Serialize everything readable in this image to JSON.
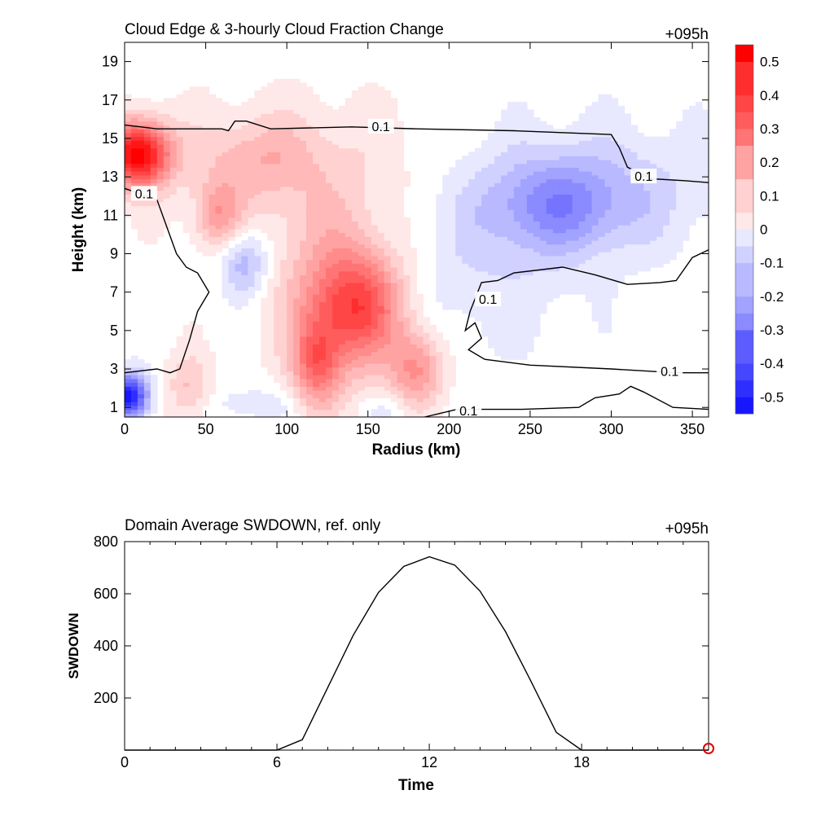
{
  "chart_data": [
    {
      "type": "heatmap",
      "title": "Cloud Edge & 3-hourly Cloud Fraction Change",
      "time_label": "+095h",
      "xlabel": "Radius (km)",
      "ylabel": "Height (km)",
      "xlim": [
        0,
        360
      ],
      "ylim": [
        0.5,
        20
      ],
      "xticks": [
        0,
        50,
        100,
        150,
        200,
        250,
        300,
        350
      ],
      "yticks": [
        1,
        3,
        5,
        7,
        9,
        11,
        13,
        15,
        17,
        19
      ],
      "colorbar": {
        "range": [
          -0.55,
          0.55
        ],
        "step": 0.05,
        "tick_values": [
          0.5,
          0.4,
          0.3,
          0.2,
          0.1,
          0,
          -0.1,
          -0.2,
          -0.3,
          -0.4,
          -0.5
        ],
        "tick_labels": [
          "0.5",
          "0.4",
          "0.3",
          "0.2",
          "0.1",
          "0",
          "-0.1",
          "-0.2",
          "-0.3",
          "-0.4",
          "-0.5"
        ],
        "positive_color": "#ff0000",
        "negative_color": "#0000ff"
      },
      "features": [
        {
          "x": 8,
          "y": 14.2,
          "value": 0.55,
          "sx": 14,
          "sy": 1.2
        },
        {
          "x": 145,
          "y": 6.3,
          "value": 0.3,
          "sx": 20,
          "sy": 2.0
        },
        {
          "x": 128,
          "y": 6.5,
          "value": 0.16,
          "sx": 25,
          "sy": 3.5
        },
        {
          "x": 118,
          "y": 3.2,
          "value": 0.24,
          "sx": 10,
          "sy": 1.6
        },
        {
          "x": 180,
          "y": 3.0,
          "value": 0.22,
          "sx": 12,
          "sy": 1.4
        },
        {
          "x": 58,
          "y": 11.0,
          "value": 0.18,
          "sx": 10,
          "sy": 1.2
        },
        {
          "x": 82,
          "y": 14.0,
          "value": 0.1,
          "sx": 25,
          "sy": 1.4
        },
        {
          "x": 40,
          "y": 2.0,
          "value": 0.14,
          "sx": 10,
          "sy": 1.3
        },
        {
          "x": 108,
          "y": 13.3,
          "value": 0.08,
          "sx": 60,
          "sy": 2.8
        },
        {
          "x": 220,
          "y": 8.0,
          "value": -0.06,
          "sx": 40,
          "sy": 3.0
        },
        {
          "x": 268,
          "y": 11.5,
          "value": -0.17,
          "sx": 30,
          "sy": 1.7
        },
        {
          "x": 285,
          "y": 12.3,
          "value": -0.1,
          "sx": 60,
          "sy": 2.3
        },
        {
          "x": 74,
          "y": 8.6,
          "value": -0.18,
          "sx": 10,
          "sy": 1.2
        },
        {
          "x": 3,
          "y": 1.6,
          "value": -0.5,
          "sx": 8,
          "sy": 0.8
        },
        {
          "x": 80,
          "y": 1.2,
          "value": -0.06,
          "sx": 25,
          "sy": 0.7
        },
        {
          "x": 160,
          "y": 0.9,
          "value": -0.06,
          "sx": 10,
          "sy": 0.6
        }
      ],
      "contour_label": "0.1",
      "contours": [
        [
          [
            0,
            15.7
          ],
          [
            20,
            15.5
          ],
          [
            60,
            15.5
          ],
          [
            64,
            15.4
          ],
          [
            68,
            15.9
          ],
          [
            75,
            15.9
          ],
          [
            90,
            15.5
          ],
          [
            140,
            15.6
          ],
          [
            180,
            15.5
          ],
          [
            240,
            15.4
          ],
          [
            300,
            15.2
          ],
          [
            305,
            14.5
          ],
          [
            310,
            13.5
          ],
          [
            325,
            12.9
          ],
          [
            345,
            12.8
          ],
          [
            360,
            12.7
          ]
        ],
        [
          [
            0,
            12.4
          ],
          [
            20,
            11.8
          ],
          [
            32,
            9.0
          ],
          [
            38,
            8.3
          ],
          [
            45,
            8.0
          ],
          [
            52,
            7.0
          ],
          [
            45,
            6.0
          ],
          [
            40,
            4.5
          ],
          [
            34,
            3.0
          ],
          [
            28,
            2.8
          ],
          [
            20,
            3.0
          ],
          [
            0,
            2.8
          ]
        ],
        [
          [
            360,
            9.2
          ],
          [
            350,
            8.8
          ],
          [
            340,
            7.6
          ],
          [
            330,
            7.5
          ],
          [
            310,
            7.4
          ],
          [
            290,
            7.9
          ],
          [
            270,
            8.3
          ],
          [
            240,
            8.0
          ],
          [
            230,
            7.6
          ],
          [
            220,
            7.5
          ],
          [
            213,
            6.0
          ],
          [
            210,
            5.0
          ],
          [
            216,
            5.4
          ],
          [
            220,
            4.6
          ],
          [
            212,
            4.0
          ],
          [
            222,
            3.5
          ],
          [
            250,
            3.2
          ],
          [
            300,
            3.0
          ],
          [
            340,
            2.8
          ],
          [
            360,
            2.8
          ]
        ],
        [
          [
            185,
            0.5
          ],
          [
            205,
            0.9
          ],
          [
            245,
            0.9
          ],
          [
            280,
            1.0
          ],
          [
            290,
            1.5
          ],
          [
            305,
            1.7
          ],
          [
            312,
            2.1
          ],
          [
            320,
            1.8
          ],
          [
            338,
            1.0
          ],
          [
            360,
            0.9
          ]
        ]
      ],
      "contour_label_positions": [
        [
          158,
          15.6
        ],
        [
          12,
          12.1
        ],
        [
          224,
          6.6
        ],
        [
          320,
          13.0
        ],
        [
          336,
          2.85
        ],
        [
          212,
          0.8
        ]
      ]
    },
    {
      "type": "line",
      "title": "Domain Average SWDOWN, ref. only",
      "time_label": "+095h",
      "xlabel": "Time",
      "ylabel": "SWDOWN",
      "xlim": [
        0,
        23
      ],
      "ylim": [
        0,
        800
      ],
      "xticks": [
        0,
        6,
        12,
        18
      ],
      "yticks": [
        200,
        400,
        600,
        800
      ],
      "series": [
        {
          "x": [
            0,
            1,
            2,
            3,
            4,
            5,
            6,
            7,
            8,
            9,
            10,
            11,
            12,
            13,
            14,
            15,
            16,
            17,
            18,
            19,
            20,
            21,
            22,
            23
          ],
          "values": [
            0,
            0,
            0,
            0,
            0,
            0,
            0,
            40,
            240,
            440,
            605,
            705,
            742,
            710,
            610,
            455,
            265,
            68,
            0,
            0,
            0,
            0,
            0,
            0
          ]
        }
      ],
      "marker": {
        "x": 23,
        "y": 0,
        "color": "#dd0000"
      }
    }
  ]
}
